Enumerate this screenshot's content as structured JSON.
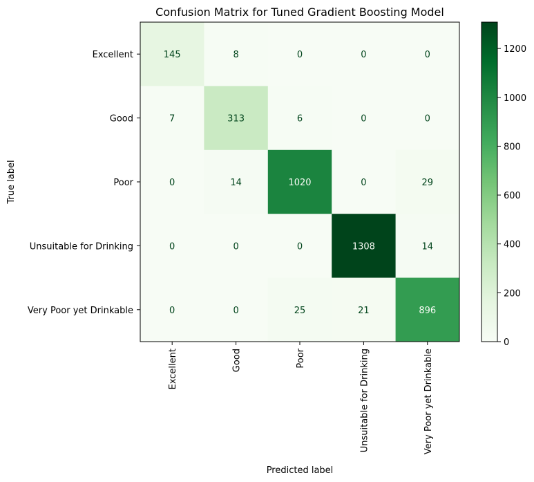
{
  "chart_data": {
    "type": "heatmap",
    "title": "Confusion Matrix for Tuned Gradient Boosting Model",
    "xlabel": "Predicted label",
    "ylabel": "True label",
    "x_categories": [
      "Excellent",
      "Good",
      "Poor",
      "Unsuitable for Drinking",
      "Very Poor yet Drinkable"
    ],
    "y_categories": [
      "Excellent",
      "Good",
      "Poor",
      "Unsuitable for Drinking",
      "Very Poor yet Drinkable"
    ],
    "values": [
      [
        145,
        8,
        0,
        0,
        0
      ],
      [
        7,
        313,
        6,
        0,
        0
      ],
      [
        0,
        14,
        1020,
        0,
        29
      ],
      [
        0,
        0,
        0,
        1308,
        14
      ],
      [
        0,
        0,
        25,
        21,
        896
      ]
    ],
    "colormap": "Greens",
    "colorbar": {
      "min": 0,
      "max": 1308,
      "ticks": [
        0,
        200,
        400,
        600,
        800,
        1000,
        1200
      ]
    },
    "colors": {
      "low": "#f7fcf5",
      "high": "#00441b",
      "text_dark": "#00441b",
      "text_light": "#f7fcf5"
    }
  }
}
